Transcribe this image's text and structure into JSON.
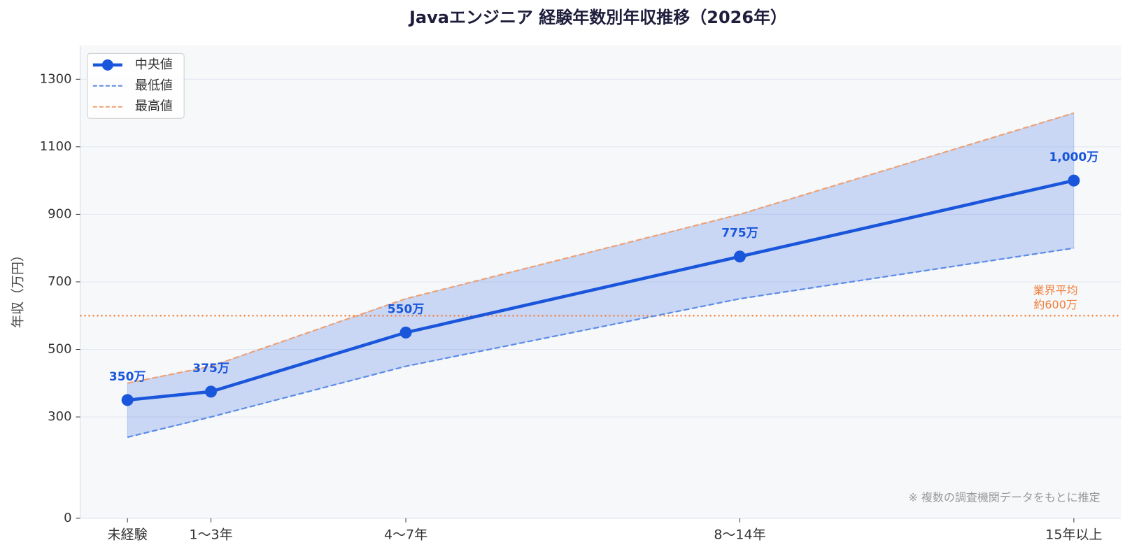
{
  "chart_data": {
    "type": "line",
    "title": "Javaエンジニア 経験年数別年収推移（2026年）",
    "y_label": "年収（万円）",
    "x": [
      0,
      1.5,
      5,
      11,
      17
    ],
    "xlim": [
      -0.85,
      17.85
    ],
    "xticks": [
      {
        "value": 0,
        "label": "未経験"
      },
      {
        "value": 1.5,
        "label": "1〜3年"
      },
      {
        "value": 5,
        "label": "4〜7年"
      },
      {
        "value": 11,
        "label": "8〜14年"
      },
      {
        "value": 17,
        "label": "15年以上"
      }
    ],
    "ylim": [
      0,
      1400
    ],
    "yticks": [
      0,
      300,
      500,
      700,
      900,
      1100,
      1300
    ],
    "grid": true,
    "legend": "upper left",
    "series": [
      {
        "name": "中央値",
        "color": "#1a56db",
        "values": [
          350,
          375,
          550,
          775,
          1000
        ],
        "value_labels": [
          "350万",
          "375万",
          "550万",
          "775万",
          "1,000万"
        ]
      },
      {
        "name": "最低値",
        "color": "#5b8be6",
        "values": [
          240,
          300,
          450,
          650,
          800
        ]
      },
      {
        "name": "最高値",
        "color": "#f0a070",
        "values": [
          400,
          450,
          650,
          900,
          1200
        ]
      }
    ],
    "band_color": "#1a56db",
    "reference_line": {
      "value": 600,
      "color": "#f07f3c",
      "label": [
        "業界平均",
        "約600万"
      ]
    },
    "note": "※ 複数の調査機関データをもとに推定"
  }
}
